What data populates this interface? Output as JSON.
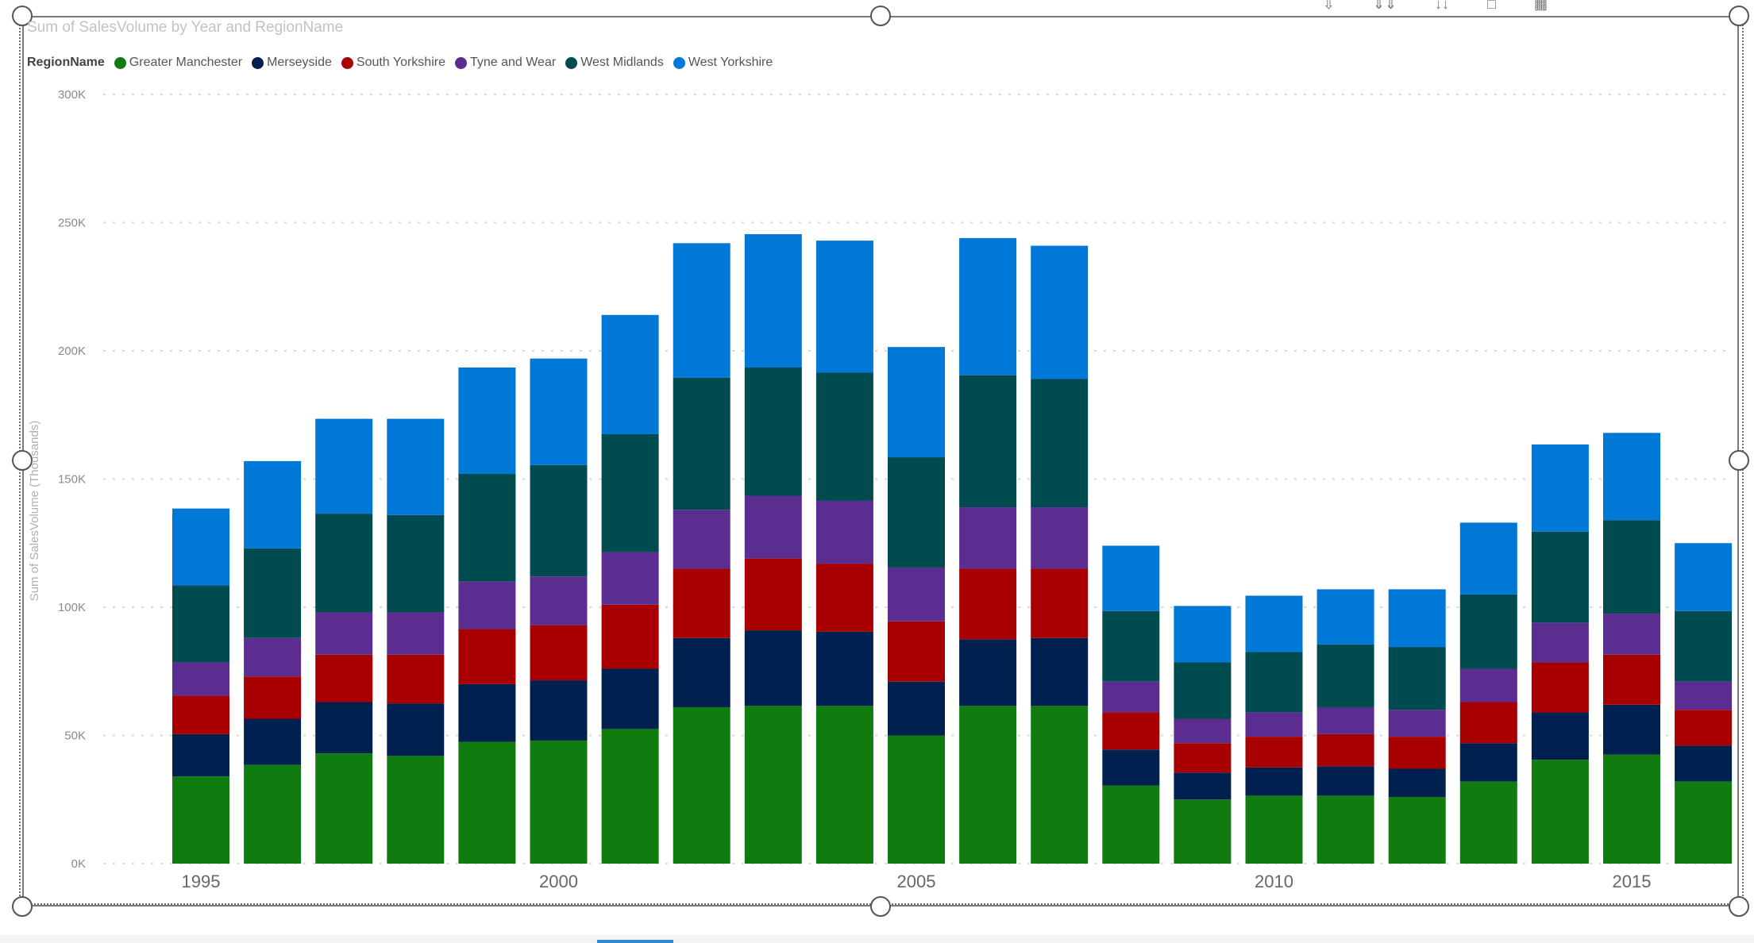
{
  "chart_data": {
    "type": "bar",
    "stacked": true,
    "title": "Sum of SalesVolume by Year and RegionName",
    "ylabel": "Sum of SalesVolume (Thousands)",
    "xlabel": "",
    "ylim": [
      0,
      300000
    ],
    "y_ticks": [
      "0K",
      "50K",
      "100K",
      "150K",
      "200K",
      "250K",
      "300K"
    ],
    "y_tick_values": [
      0,
      50000,
      100000,
      150000,
      200000,
      250000,
      300000
    ],
    "grid": true,
    "legend_title": "RegionName",
    "legend_position": "top-left",
    "x_tick_labels": [
      "1995",
      "2000",
      "2005",
      "2010",
      "2015"
    ],
    "categories": [
      "1995",
      "1996",
      "1997",
      "1998",
      "1999",
      "2000",
      "2001",
      "2002",
      "2003",
      "2004",
      "2005",
      "2006",
      "2007",
      "2008",
      "2009",
      "2010",
      "2011",
      "2012",
      "2013",
      "2014",
      "2015",
      "2016"
    ],
    "series": [
      {
        "name": "Greater Manchester",
        "color": "#107c10",
        "values": [
          34000,
          38500,
          43000,
          42000,
          47500,
          48000,
          52500,
          61000,
          61500,
          61500,
          50000,
          61500,
          61500,
          30500,
          25000,
          26500,
          26500,
          26000,
          32000,
          40500,
          42500,
          32000
        ]
      },
      {
        "name": "Merseyside",
        "color": "#002050",
        "values": [
          16500,
          18000,
          20000,
          20500,
          22500,
          23500,
          23500,
          27000,
          29500,
          29000,
          21000,
          26000,
          26500,
          14000,
          10500,
          11000,
          11500,
          11000,
          15000,
          18500,
          19500,
          14000
        ]
      },
      {
        "name": "South Yorkshire",
        "color": "#a80000",
        "values": [
          15000,
          16500,
          18500,
          19000,
          21500,
          21500,
          25000,
          27000,
          28000,
          26500,
          23500,
          27500,
          27000,
          14500,
          11500,
          12000,
          12500,
          12500,
          16000,
          19500,
          19500,
          14000
        ]
      },
      {
        "name": "Tyne and Wear",
        "color": "#5c2d91",
        "values": [
          13000,
          15000,
          16500,
          16500,
          18500,
          19000,
          20500,
          23000,
          24500,
          24500,
          21000,
          24000,
          24000,
          12000,
          9500,
          9500,
          10500,
          10500,
          13000,
          15500,
          16000,
          11000
        ]
      },
      {
        "name": "West Midlands",
        "color": "#004b50",
        "values": [
          30000,
          35000,
          38500,
          38000,
          42000,
          43500,
          46000,
          51500,
          50000,
          50000,
          43000,
          51500,
          50000,
          27500,
          22000,
          23500,
          24500,
          24500,
          29000,
          35500,
          36500,
          27500
        ]
      },
      {
        "name": "West Yorkshire",
        "color": "#0078d7",
        "values": [
          30000,
          34000,
          37000,
          37500,
          41500,
          41500,
          46500,
          52500,
          52000,
          51500,
          43000,
          53500,
          52000,
          25500,
          22000,
          22000,
          21500,
          22500,
          28000,
          34000,
          34000,
          26500
        ]
      }
    ]
  },
  "toolbar": {
    "icons": [
      "drill-up-icon",
      "drill-down-icon",
      "expand-all-icon",
      "focus-mode-icon",
      "more-options-icon"
    ]
  }
}
